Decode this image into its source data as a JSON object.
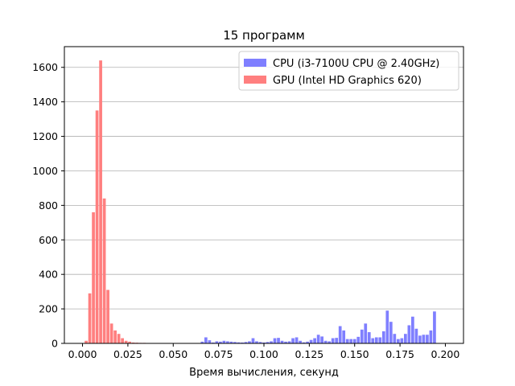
{
  "chart_data": {
    "type": "bar",
    "title": "15 программ",
    "xlabel": "Время вычисления, секунд",
    "ylabel": "",
    "xlim": [
      -0.01,
      0.21
    ],
    "ylim": [
      0,
      1720
    ],
    "xticks": [
      "0.000",
      "0.025",
      "0.050",
      "0.075",
      "0.100",
      "0.125",
      "0.150",
      "0.175",
      "0.200"
    ],
    "yticks": [
      "0",
      "200",
      "400",
      "600",
      "800",
      "1000",
      "1200",
      "1400",
      "1600"
    ],
    "grid": "horizontal",
    "legend_position": "top-right",
    "bin_width": 0.002,
    "series": [
      {
        "name": "CPU (i3-7100U CPU @ 2.40GHz)",
        "color": "#7f7fff",
        "x": [
          0.066,
          0.068,
          0.07,
          0.072,
          0.074,
          0.076,
          0.078,
          0.08,
          0.082,
          0.084,
          0.086,
          0.088,
          0.09,
          0.092,
          0.094,
          0.096,
          0.098,
          0.1,
          0.102,
          0.104,
          0.106,
          0.108,
          0.11,
          0.112,
          0.114,
          0.116,
          0.118,
          0.12,
          0.122,
          0.124,
          0.126,
          0.128,
          0.13,
          0.132,
          0.134,
          0.136,
          0.138,
          0.14,
          0.142,
          0.144,
          0.146,
          0.148,
          0.15,
          0.152,
          0.154,
          0.156,
          0.158,
          0.16,
          0.162,
          0.164,
          0.166,
          0.168,
          0.17,
          0.172,
          0.174,
          0.176,
          0.178,
          0.18,
          0.182,
          0.184,
          0.186,
          0.188,
          0.19,
          0.192,
          0.194,
          0.196,
          0.198
        ],
        "values": [
          10,
          35,
          18,
          5,
          12,
          10,
          15,
          12,
          10,
          8,
          6,
          5,
          8,
          12,
          30,
          12,
          8,
          5,
          8,
          12,
          30,
          32,
          15,
          10,
          12,
          30,
          35,
          15,
          6,
          10,
          20,
          30,
          50,
          40,
          15,
          12,
          30,
          32,
          100,
          75,
          25,
          25,
          25,
          38,
          80,
          115,
          65,
          30,
          35,
          35,
          70,
          190,
          125,
          55,
          25,
          30,
          55,
          105,
          155,
          85,
          45,
          50,
          50,
          75,
          185,
          0,
          0
        ]
      },
      {
        "name": "GPU (Intel HD Graphics 620)",
        "color": "#ff7f7f",
        "x": [
          0.002,
          0.004,
          0.006,
          0.008,
          0.01,
          0.012,
          0.014,
          0.016,
          0.018,
          0.02,
          0.022,
          0.024,
          0.026,
          0.028,
          0.03,
          0.032,
          0.034,
          0.036,
          0.038,
          0.04,
          0.042,
          0.044,
          0.046
        ],
        "values": [
          15,
          290,
          760,
          1350,
          1640,
          840,
          310,
          115,
          75,
          55,
          30,
          15,
          10,
          5,
          4,
          3,
          3,
          2,
          2,
          2,
          1,
          1,
          1
        ]
      }
    ]
  }
}
